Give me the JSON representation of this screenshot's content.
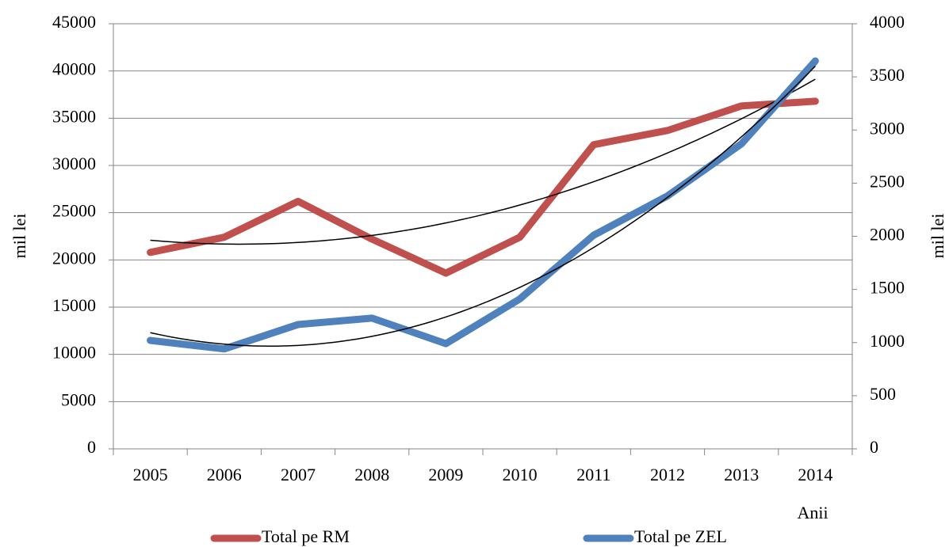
{
  "chart_data": {
    "type": "line",
    "categories": [
      "2005",
      "2006",
      "2007",
      "2008",
      "2009",
      "2010",
      "2011",
      "2012",
      "2013",
      "2014"
    ],
    "series": [
      {
        "name": "Total pe RM",
        "color": "#c0504d",
        "values": [
          20800,
          22400,
          26200,
          22200,
          18600,
          22400,
          32200,
          33700,
          36300,
          36800
        ]
      },
      {
        "name": "Total pe ZEL",
        "color": "#4f81bd",
        "axis": "y2",
        "values": [
          1020,
          940,
          1170,
          1230,
          990,
          1410,
          2010,
          2380,
          2870,
          3650
        ]
      }
    ],
    "ylim": [
      0,
      45000
    ],
    "yticks": [
      0,
      5000,
      10000,
      15000,
      20000,
      25000,
      30000,
      35000,
      40000,
      45000
    ],
    "y2lim": [
      0,
      4000
    ],
    "y2ticks": [
      0,
      500,
      1000,
      1500,
      2000,
      2500,
      3000,
      3500,
      4000
    ],
    "ylabel": "mil lei",
    "y2label": "mil lei",
    "xlabel": "Anii",
    "grid": true,
    "trendline": "polynomial-2",
    "trendline_color": "#000000",
    "legend": "bottom"
  }
}
